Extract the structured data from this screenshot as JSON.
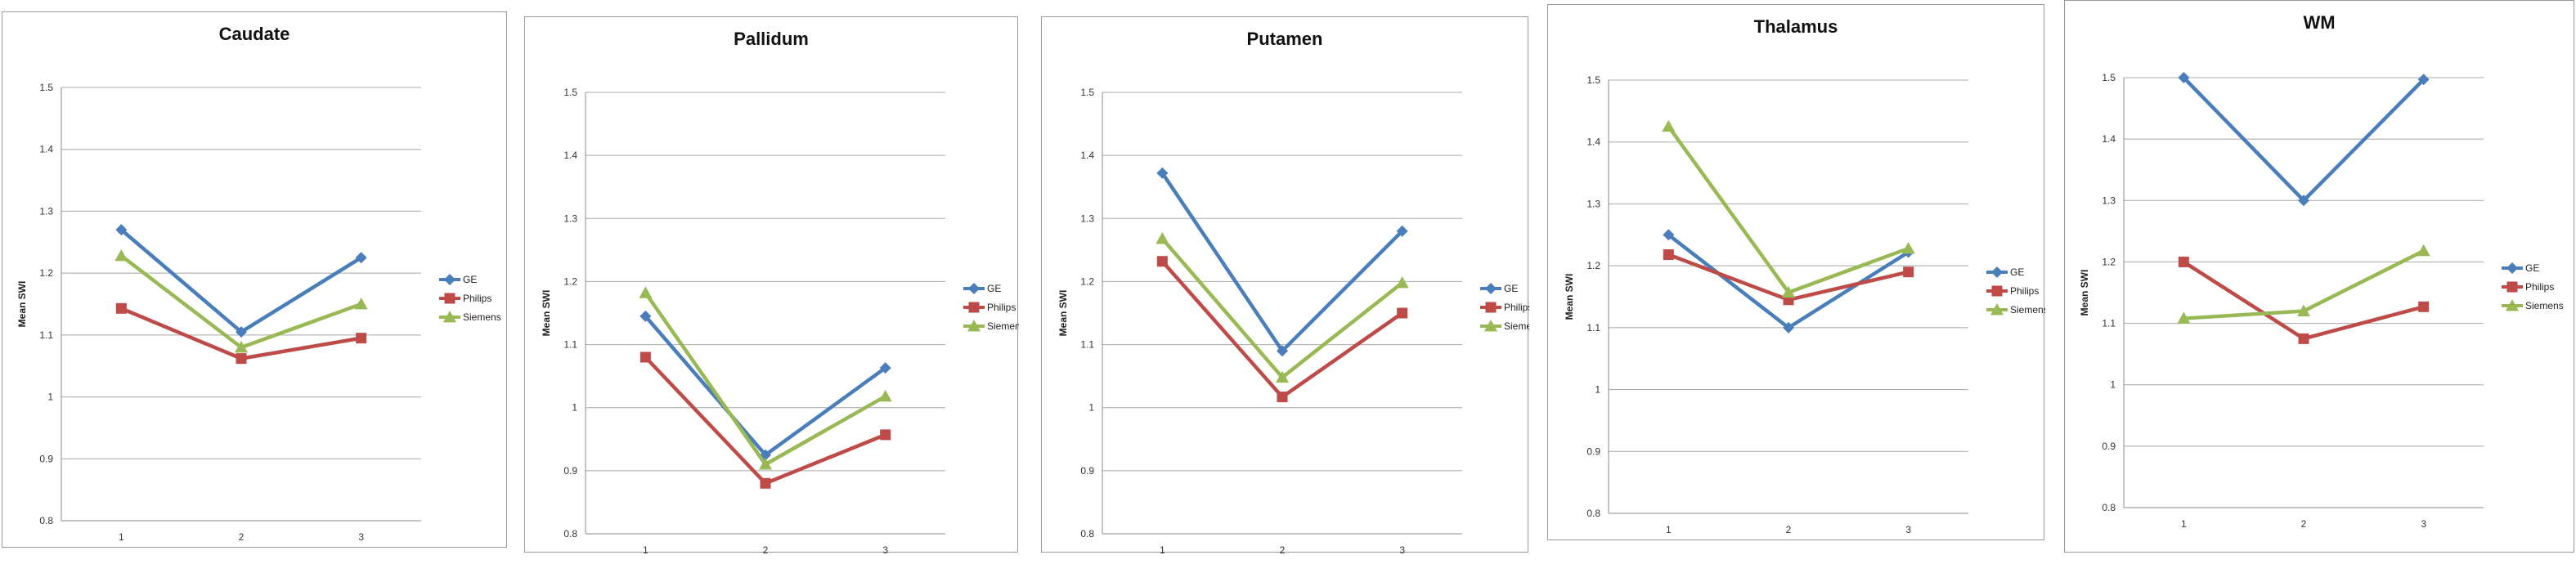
{
  "colors": {
    "GE": "#4a7ebb",
    "Philips": "#be4b48",
    "Siemens": "#98b954"
  },
  "chart_data": [
    {
      "type": "line",
      "title": "Caudate",
      "ylabel": "Mean SWI",
      "categories": [
        "1",
        "2",
        "3"
      ],
      "ylim": [
        0.8,
        1.5
      ],
      "yticks": [
        "0.8",
        "0.9",
        "1",
        "1.1",
        "1.2",
        "1.3",
        "1.4",
        "1.5"
      ],
      "series": [
        {
          "name": "GE",
          "marker": "diamond",
          "values": [
            1.27,
            1.105,
            1.225
          ]
        },
        {
          "name": "Philips",
          "marker": "square",
          "values": [
            1.143,
            1.062,
            1.095
          ]
        },
        {
          "name": "Siemens",
          "marker": "triangle",
          "values": [
            1.228,
            1.08,
            1.15
          ]
        }
      ]
    },
    {
      "type": "line",
      "title": "Pallidum",
      "ylabel": "Mean SWI",
      "categories": [
        "1",
        "2",
        "3"
      ],
      "ylim": [
        0.8,
        1.5
      ],
      "yticks": [
        "0.8",
        "0.9",
        "1",
        "1.1",
        "1.2",
        "1.3",
        "1.4",
        "1.5"
      ],
      "series": [
        {
          "name": "GE",
          "marker": "diamond",
          "values": [
            1.145,
            0.925,
            1.063
          ]
        },
        {
          "name": "Philips",
          "marker": "square",
          "values": [
            1.08,
            0.88,
            0.957
          ]
        },
        {
          "name": "Siemens",
          "marker": "triangle",
          "values": [
            1.182,
            0.91,
            1.018
          ]
        }
      ]
    },
    {
      "type": "line",
      "title": "Putamen",
      "ylabel": "Mean SWI",
      "categories": [
        "1",
        "2",
        "3"
      ],
      "ylim": [
        0.8,
        1.5
      ],
      "yticks": [
        "0.8",
        "0.9",
        "1",
        "1.1",
        "1.2",
        "1.3",
        "1.4",
        "1.5"
      ],
      "series": [
        {
          "name": "GE",
          "marker": "diamond",
          "values": [
            1.372,
            1.09,
            1.28
          ]
        },
        {
          "name": "Philips",
          "marker": "square",
          "values": [
            1.232,
            1.017,
            1.15
          ]
        },
        {
          "name": "Siemens",
          "marker": "triangle",
          "values": [
            1.268,
            1.048,
            1.198
          ]
        }
      ]
    },
    {
      "type": "line",
      "title": "Thalamus",
      "ylabel": "Mean SWI",
      "categories": [
        "1",
        "2",
        "3"
      ],
      "ylim": [
        0.8,
        1.5
      ],
      "yticks": [
        "0.8",
        "0.9",
        "1",
        "1.1",
        "1.2",
        "1.3",
        "1.4",
        "1.5"
      ],
      "series": [
        {
          "name": "GE",
          "marker": "diamond",
          "values": [
            1.25,
            1.1,
            1.222
          ]
        },
        {
          "name": "Philips",
          "marker": "square",
          "values": [
            1.218,
            1.145,
            1.19
          ]
        },
        {
          "name": "Siemens",
          "marker": "triangle",
          "values": [
            1.425,
            1.157,
            1.228
          ]
        }
      ]
    },
    {
      "type": "line",
      "title": "WM",
      "ylabel": "Mean SWI",
      "categories": [
        "1",
        "2",
        "3"
      ],
      "ylim": [
        0.8,
        1.5
      ],
      "yticks": [
        "0.8",
        "0.9",
        "1",
        "1.1",
        "1.2",
        "1.3",
        "1.4",
        "1.5"
      ],
      "series": [
        {
          "name": "GE",
          "marker": "diamond",
          "values": [
            1.5,
            1.3,
            1.497
          ]
        },
        {
          "name": "Philips",
          "marker": "square",
          "values": [
            1.2,
            1.075,
            1.127
          ]
        },
        {
          "name": "Siemens",
          "marker": "triangle",
          "values": [
            1.108,
            1.12,
            1.218
          ]
        }
      ]
    }
  ]
}
